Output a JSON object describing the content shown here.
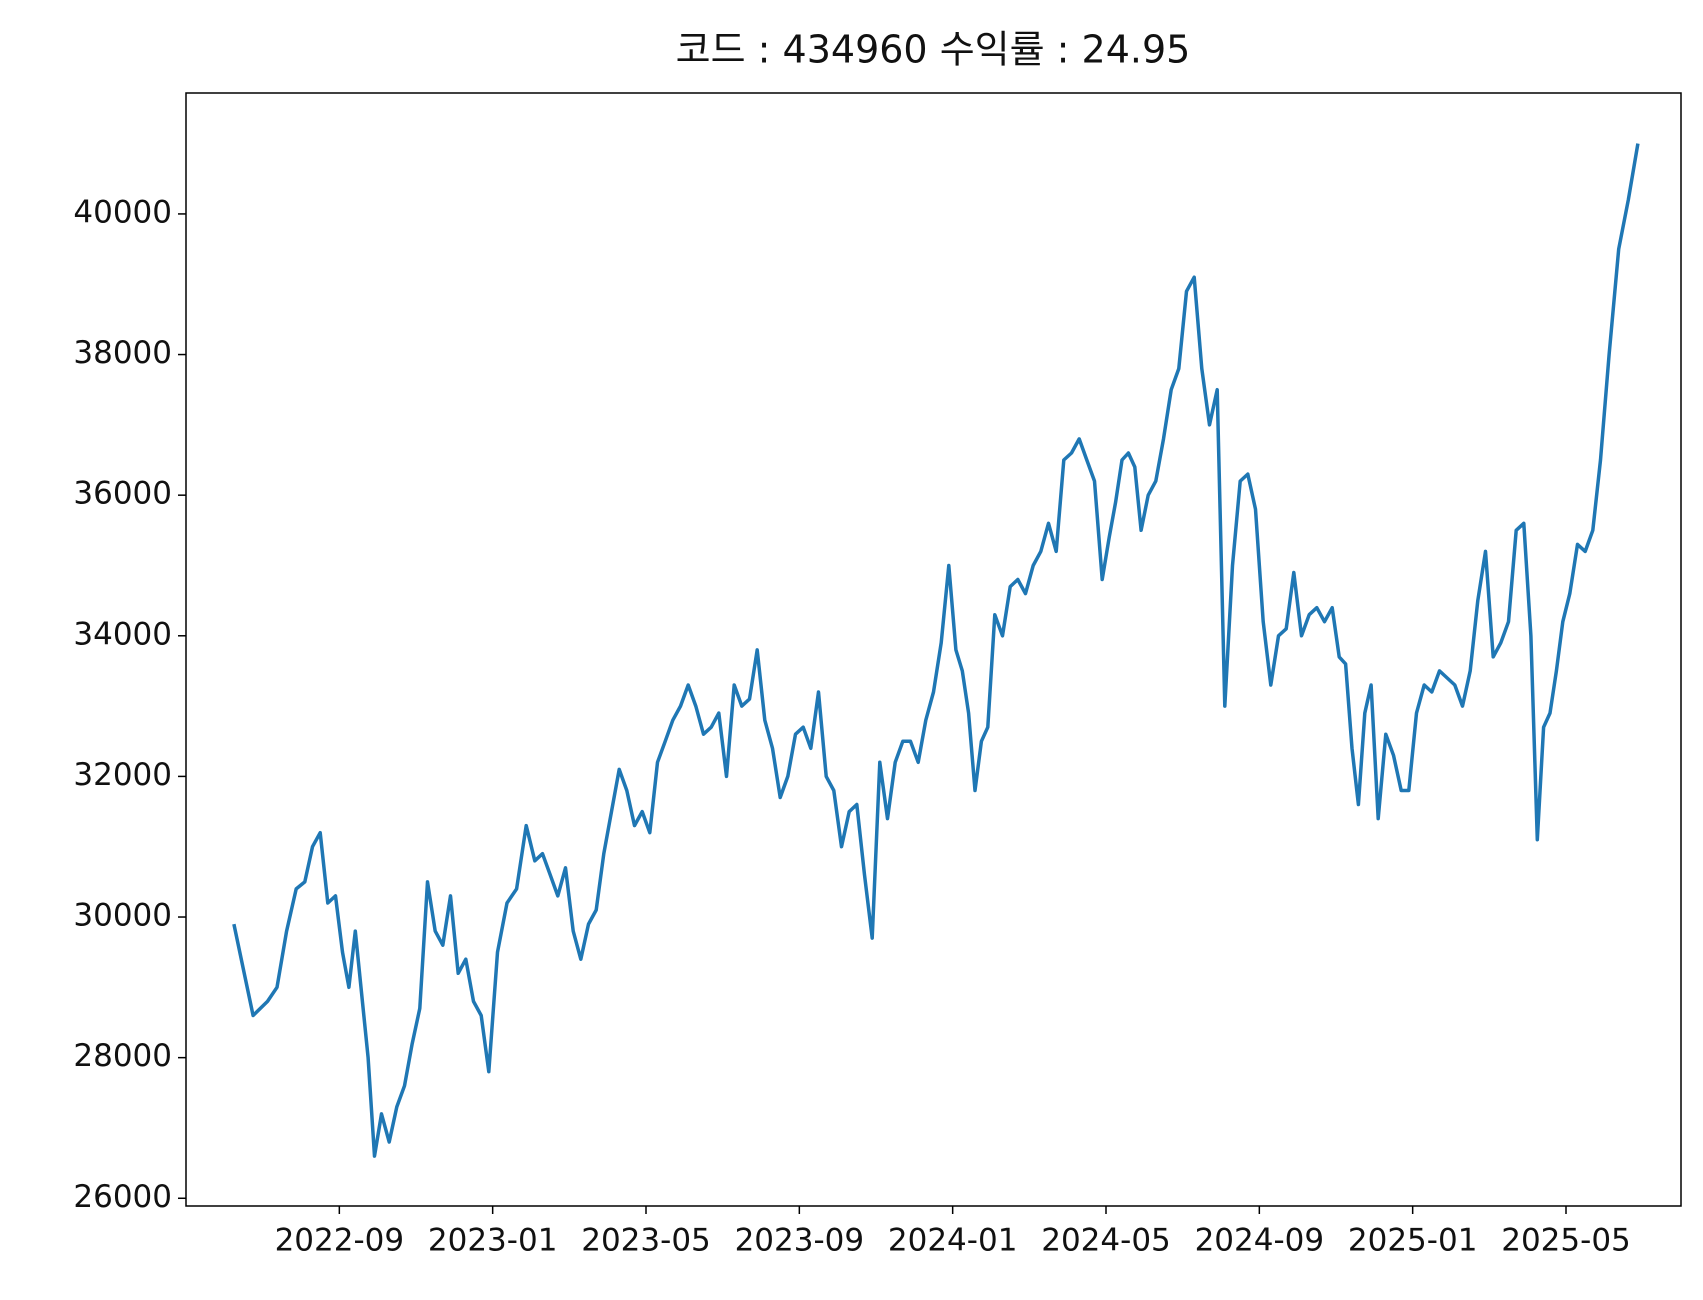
{
  "chart_data": {
    "type": "line",
    "title": "코드 : 434960 수익률 : 24.95",
    "x": [
      "2022-06",
      "2022-06",
      "2022-07",
      "2022-07",
      "2022-07",
      "2022-07",
      "2022-08",
      "2022-08",
      "2022-08",
      "2022-08",
      "2022-08",
      "2022-09",
      "2022-09",
      "2022-09",
      "2022-09",
      "2022-09",
      "2022-09",
      "2022-10",
      "2022-10",
      "2022-10",
      "2022-10",
      "2022-10",
      "2022-11",
      "2022-11",
      "2022-11",
      "2022-11",
      "2022-11",
      "2022-12",
      "2022-12",
      "2022-12",
      "2022-12",
      "2022-12",
      "2023-01",
      "2023-01",
      "2023-01",
      "2023-01",
      "2023-02",
      "2023-02",
      "2023-02",
      "2023-02",
      "2023-02",
      "2023-03",
      "2023-03",
      "2023-03",
      "2023-03",
      "2023-03",
      "2023-04",
      "2023-04",
      "2023-04",
      "2023-04",
      "2023-04",
      "2023-05",
      "2023-05",
      "2023-05",
      "2023-05",
      "2023-05",
      "2023-06",
      "2023-06",
      "2023-06",
      "2023-06",
      "2023-06",
      "2023-07",
      "2023-07",
      "2023-07",
      "2023-07",
      "2023-07",
      "2023-08",
      "2023-08",
      "2023-08",
      "2023-08",
      "2023-08",
      "2023-09",
      "2023-09",
      "2023-09",
      "2023-09",
      "2023-09",
      "2023-10",
      "2023-10",
      "2023-10",
      "2023-10",
      "2023-10",
      "2023-11",
      "2023-11",
      "2023-11",
      "2023-11",
      "2023-11",
      "2023-12",
      "2023-12",
      "2023-12",
      "2023-12",
      "2023-12",
      "2024-01",
      "2024-01",
      "2024-01",
      "2024-01",
      "2024-01",
      "2024-01",
      "2024-02",
      "2024-02",
      "2024-02",
      "2024-02",
      "2024-02",
      "2024-03",
      "2024-03",
      "2024-03",
      "2024-03",
      "2024-03",
      "2024-04",
      "2024-04",
      "2024-04",
      "2024-04",
      "2024-04",
      "2024-05",
      "2024-05",
      "2024-05",
      "2024-05",
      "2024-05",
      "2024-05",
      "2024-06",
      "2024-06",
      "2024-06",
      "2024-06",
      "2024-06",
      "2024-07",
      "2024-07",
      "2024-07",
      "2024-07",
      "2024-07",
      "2024-08",
      "2024-08",
      "2024-08",
      "2024-08",
      "2024-08",
      "2024-09",
      "2024-09",
      "2024-09",
      "2024-09",
      "2024-09",
      "2024-10",
      "2024-10",
      "2024-10",
      "2024-10",
      "2024-10",
      "2024-11",
      "2024-11",
      "2024-11",
      "2024-11",
      "2024-11",
      "2024-11",
      "2024-12",
      "2024-12",
      "2024-12",
      "2024-12",
      "2024-12",
      "2025-01",
      "2025-01",
      "2025-01",
      "2025-01",
      "2025-01",
      "2025-02",
      "2025-02",
      "2025-02",
      "2025-02",
      "2025-02",
      "2025-03",
      "2025-03",
      "2025-03",
      "2025-03",
      "2025-03",
      "2025-04",
      "2025-04",
      "2025-04",
      "2025-04",
      "2025-04",
      "2025-04",
      "2025-05",
      "2025-05",
      "2025-05",
      "2025-05",
      "2025-05",
      "2025-06",
      "2025-06",
      "2025-06",
      "2025-06"
    ],
    "series": [
      {
        "name": "434960",
        "color": "#1f77b4",
        "values": [
          29900,
          28600,
          28800,
          29000,
          29800,
          30400,
          30500,
          31000,
          31200,
          30200,
          30300,
          29500,
          29000,
          29800,
          28900,
          28000,
          26600,
          27200,
          26800,
          27300,
          27600,
          28200,
          28700,
          30500,
          29800,
          29600,
          30300,
          29200,
          29400,
          28800,
          28600,
          27800,
          29500,
          30200,
          30400,
          31300,
          30800,
          30900,
          30600,
          30300,
          30700,
          29800,
          29400,
          29900,
          30100,
          30900,
          31500,
          32100,
          31800,
          31300,
          31500,
          31200,
          32200,
          32500,
          32800,
          33000,
          33300,
          33000,
          32600,
          32700,
          32900,
          32000,
          33300,
          33000,
          33100,
          33800,
          32800,
          32400,
          31700,
          32000,
          32600,
          32700,
          32400,
          33200,
          32000,
          31800,
          31000,
          31500,
          31600,
          30600,
          29700,
          32200,
          31400,
          32200,
          32500,
          32500,
          32200,
          32800,
          33200,
          33900,
          35000,
          33800,
          33500,
          32900,
          31800,
          32500,
          32700,
          34300,
          34000,
          34700,
          34800,
          34600,
          35000,
          35200,
          35600,
          35200,
          36500,
          36600,
          36800,
          36500,
          36200,
          34800,
          35400,
          35900,
          36500,
          36600,
          36400,
          35500,
          36000,
          36200,
          36800,
          37500,
          37800,
          38900,
          39100,
          37800,
          37000,
          37500,
          33000,
          35000,
          36200,
          36300,
          35800,
          34200,
          33300,
          34000,
          34100,
          34900,
          34000,
          34300,
          34400,
          34200,
          34400,
          33700,
          33600,
          32400,
          31600,
          32900,
          33300,
          31400,
          32600,
          32300,
          31800,
          31800,
          32900,
          33300,
          33200,
          33500,
          33400,
          33300,
          33000,
          33500,
          34500,
          35200,
          33700,
          33900,
          34200,
          35500,
          35600,
          34000,
          31100,
          32700,
          32900,
          33500,
          34200,
          34600,
          35300,
          35200,
          35500,
          36500,
          38000,
          39500,
          40200,
          41000
        ]
      }
    ],
    "xlim": [
      "2022-05",
      "2025-08"
    ],
    "xticks": [
      "2022-09",
      "2023-01",
      "2023-05",
      "2023-09",
      "2024-01",
      "2024-05",
      "2024-09",
      "2025-01",
      "2025-05"
    ],
    "ylim": [
      25890,
      41720
    ],
    "yticks": [
      26000,
      28000,
      30000,
      32000,
      34000,
      36000,
      38000,
      40000
    ]
  }
}
